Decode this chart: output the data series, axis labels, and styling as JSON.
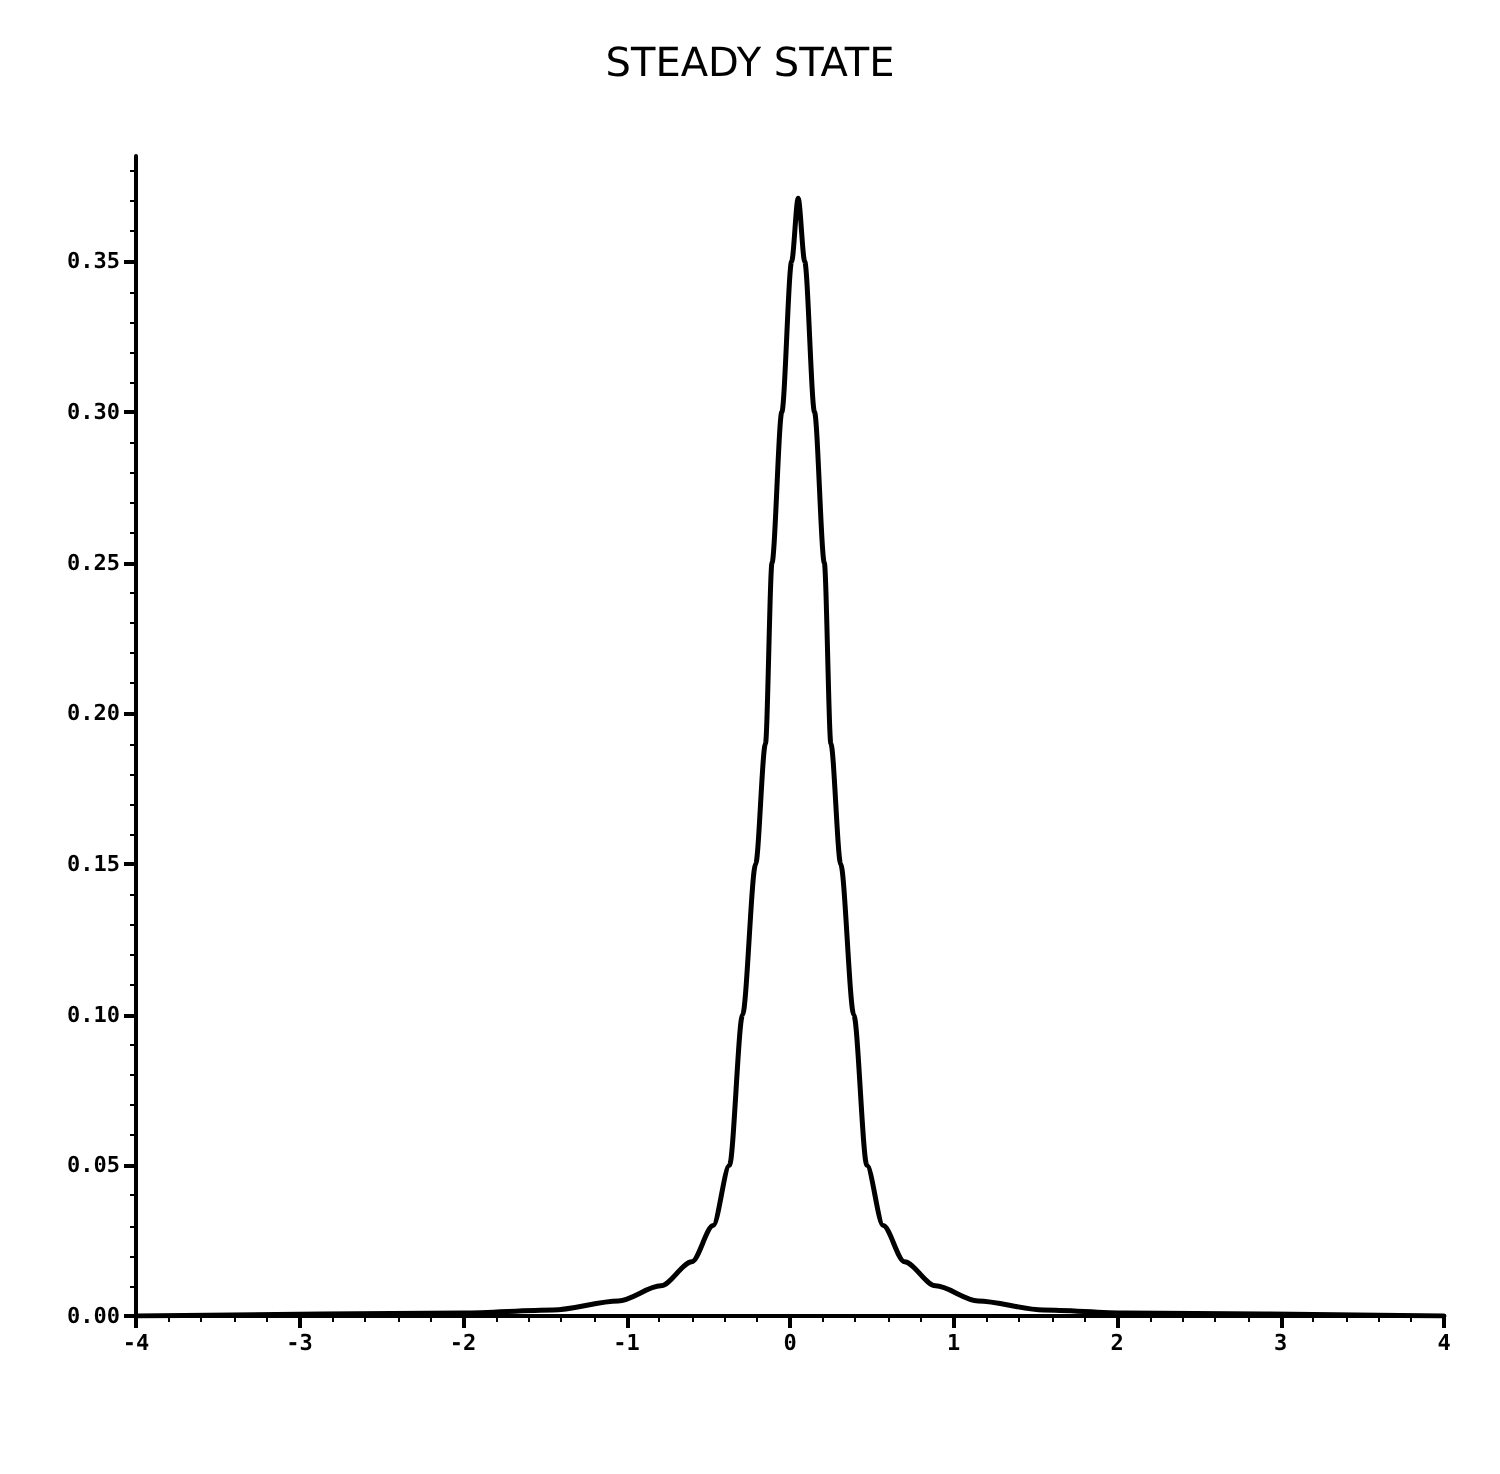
{
  "chart_data": {
    "type": "line",
    "title": "STEADY STATE",
    "x": [
      -4,
      -2,
      -1.45,
      -1.05,
      -0.79,
      -0.6,
      -0.47,
      -0.37,
      -0.29,
      -0.21,
      -0.15,
      -0.11,
      -0.05,
      0.01,
      0.05,
      0.09,
      0.15,
      0.21,
      0.25,
      0.31,
      0.39,
      0.47,
      0.57,
      0.7,
      0.89,
      1.15,
      1.55,
      2.05,
      4
    ],
    "series": [
      {
        "color": "#000000",
        "values": [
          0,
          0.001,
          0.002,
          0.005,
          0.01,
          0.018,
          0.03,
          0.05,
          0.1,
          0.15,
          0.19,
          0.25,
          0.3,
          0.35,
          0.371,
          0.35,
          0.3,
          0.25,
          0.19,
          0.15,
          0.1,
          0.05,
          0.03,
          0.018,
          0.01,
          0.005,
          0.002,
          0.001,
          0
        ]
      }
    ],
    "xlim": [
      -4,
      4
    ],
    "xticks": [
      -4,
      -3,
      -2,
      -1,
      0,
      1,
      2,
      3,
      4
    ],
    "ylim": [
      0,
      0.385
    ],
    "yticks": [
      {
        "value": 0,
        "label": "0.00"
      },
      {
        "value": 0.05,
        "label": "0.05"
      },
      {
        "value": 0.1,
        "label": "0.10"
      },
      {
        "value": 0.15,
        "label": "0.15"
      },
      {
        "value": 0.2,
        "label": "0.20"
      },
      {
        "value": 0.25,
        "label": "0.25"
      },
      {
        "value": 0.3,
        "label": "0.30"
      },
      {
        "value": 0.35,
        "label": "0.35"
      }
    ],
    "grid": false,
    "marker": "none",
    "line_style": "solid"
  }
}
